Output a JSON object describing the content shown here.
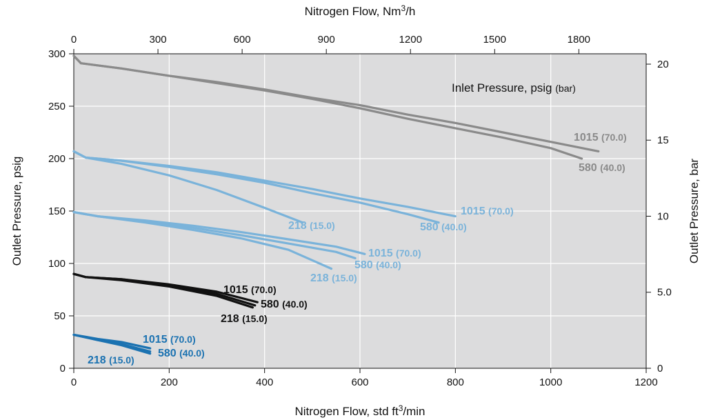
{
  "chart_data": {
    "type": "line",
    "x_bottom": {
      "label": "Nitrogen Flow, std ft",
      "label_sup": "3",
      "label_tail": "/min",
      "range": [
        0,
        1200
      ],
      "ticks": [
        "0",
        "200",
        "400",
        "600",
        "800",
        "1000",
        "1200"
      ]
    },
    "x_top": {
      "label": "Nitrogen Flow, Nm",
      "label_sup": "3",
      "label_tail": "/h",
      "range": [
        0,
        2040
      ],
      "ticks": [
        "0",
        "300",
        "600",
        "900",
        "1200",
        "1500",
        "1800"
      ]
    },
    "y_left": {
      "label": "Outlet Pressure, psig",
      "range": [
        0,
        300
      ],
      "ticks": [
        "0",
        "50",
        "100",
        "150",
        "200",
        "250",
        "300"
      ]
    },
    "y_right": {
      "label": "Outlet Pressure, bar",
      "range": [
        0,
        20.68
      ],
      "ticks": [
        "0",
        "5.0",
        "10",
        "15",
        "20"
      ]
    },
    "annotation": {
      "main": "Inlet Pressure, psig ",
      "paren": "(bar)"
    },
    "grid": true,
    "colors": {
      "plot_bg": "#dcdcdd",
      "grid": "#ffffff",
      "gray": "#8a8a8a",
      "light_blue": "#7ab3da",
      "black": "#111111",
      "dark_blue": "#1b72b1"
    },
    "groups": [
      {
        "color": "gray",
        "series": [
          {
            "inlet": "1015",
            "bar": "(70.0)",
            "points": [
              [
                0,
                298
              ],
              [
                15,
                291
              ],
              [
                100,
                286
              ],
              [
                200,
                279
              ],
              [
                300,
                273
              ],
              [
                400,
                266
              ],
              [
                500,
                258
              ],
              [
                600,
                251
              ],
              [
                700,
                242
              ],
              [
                800,
                234
              ],
              [
                900,
                225
              ],
              [
                1000,
                216
              ],
              [
                1100,
                207
              ]
            ]
          },
          {
            "inlet": "580",
            "bar": "(40.0)",
            "points": [
              [
                0,
                298
              ],
              [
                15,
                291
              ],
              [
                100,
                286
              ],
              [
                200,
                279
              ],
              [
                300,
                272
              ],
              [
                400,
                265
              ],
              [
                500,
                257
              ],
              [
                600,
                248
              ],
              [
                700,
                238
              ],
              [
                800,
                229
              ],
              [
                900,
                220
              ],
              [
                1000,
                210
              ],
              [
                1065,
                200
              ]
            ]
          }
        ]
      },
      {
        "color": "light_blue",
        "series": [
          {
            "inlet": "1015",
            "bar": "(70.0)",
            "points": [
              [
                0,
                207
              ],
              [
                25,
                201
              ],
              [
                100,
                198
              ],
              [
                200,
                193
              ],
              [
                300,
                187
              ],
              [
                400,
                179
              ],
              [
                500,
                171
              ],
              [
                600,
                162
              ],
              [
                700,
                154
              ],
              [
                800,
                145
              ]
            ]
          },
          {
            "inlet": "580",
            "bar": "(40.0)",
            "points": [
              [
                0,
                207
              ],
              [
                25,
                201
              ],
              [
                100,
                198
              ],
              [
                200,
                192
              ],
              [
                300,
                185
              ],
              [
                400,
                177
              ],
              [
                500,
                167
              ],
              [
                600,
                158
              ],
              [
                700,
                147
              ],
              [
                765,
                139
              ]
            ]
          },
          {
            "inlet": "218",
            "bar": "(15.0)",
            "points": [
              [
                0,
                207
              ],
              [
                25,
                201
              ],
              [
                100,
                195
              ],
              [
                200,
                184
              ],
              [
                300,
                170
              ],
              [
                400,
                153
              ],
              [
                480,
                139
              ]
            ]
          },
          {
            "inlet": "1015",
            "bar": "(70.0)",
            "points": [
              [
                0,
                149
              ],
              [
                50,
                145
              ],
              [
                150,
                141
              ],
              [
                250,
                136
              ],
              [
                350,
                130
              ],
              [
                450,
                123
              ],
              [
                550,
                116
              ],
              [
                610,
                109
              ]
            ]
          },
          {
            "inlet": "580",
            "bar": "(40.0)",
            "points": [
              [
                0,
                149
              ],
              [
                50,
                145
              ],
              [
                150,
                140
              ],
              [
                250,
                134
              ],
              [
                350,
                127
              ],
              [
                450,
                119
              ],
              [
                550,
                111
              ],
              [
                590,
                105
              ]
            ]
          },
          {
            "inlet": "218",
            "bar": "(15.0)",
            "points": [
              [
                0,
                149
              ],
              [
                50,
                145
              ],
              [
                150,
                139
              ],
              [
                250,
                132
              ],
              [
                350,
                124
              ],
              [
                450,
                113
              ],
              [
                540,
                95
              ]
            ]
          }
        ]
      },
      {
        "color": "black",
        "series": [
          {
            "inlet": "1015",
            "bar": "(70.0)",
            "points": [
              [
                0,
                90
              ],
              [
                25,
                87
              ],
              [
                100,
                85
              ],
              [
                200,
                80
              ],
              [
                300,
                73
              ],
              [
                385,
                63
              ]
            ]
          },
          {
            "inlet": "580",
            "bar": "(40.0)",
            "points": [
              [
                0,
                90
              ],
              [
                25,
                87
              ],
              [
                100,
                85
              ],
              [
                200,
                79
              ],
              [
                300,
                71
              ],
              [
                380,
                60
              ]
            ]
          },
          {
            "inlet": "218",
            "bar": "(15.0)",
            "points": [
              [
                0,
                90
              ],
              [
                25,
                87
              ],
              [
                100,
                84
              ],
              [
                200,
                78
              ],
              [
                300,
                69
              ],
              [
                375,
                58
              ]
            ]
          }
        ]
      },
      {
        "color": "dark_blue",
        "series": [
          {
            "inlet": "1015",
            "bar": "(70.0)",
            "points": [
              [
                0,
                32
              ],
              [
                50,
                28
              ],
              [
                100,
                25
              ],
              [
                160,
                19
              ]
            ]
          },
          {
            "inlet": "580",
            "bar": "(40.0)",
            "points": [
              [
                0,
                32
              ],
              [
                50,
                27
              ],
              [
                100,
                23
              ],
              [
                160,
                16
              ]
            ]
          },
          {
            "inlet": "218",
            "bar": "(15.0)",
            "points": [
              [
                0,
                32
              ],
              [
                50,
                27
              ],
              [
                100,
                22
              ],
              [
                160,
                14
              ]
            ]
          }
        ]
      }
    ]
  }
}
